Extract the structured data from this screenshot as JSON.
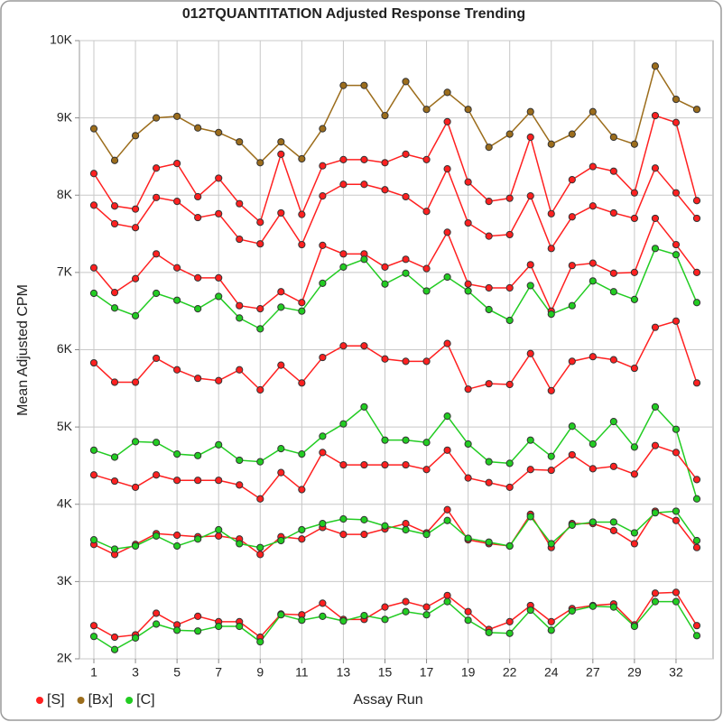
{
  "chart_data": {
    "type": "line",
    "title": "012TQUANTITATION Adjusted Response Trending",
    "x_label": "Assay Run",
    "y_label": "Mean Adjusted CPM",
    "categories": [
      "1",
      null,
      "3",
      null,
      "5",
      null,
      "7",
      null,
      "9",
      null,
      "11",
      null,
      "13",
      null,
      "15",
      null,
      "17",
      null,
      "19",
      null,
      "22",
      null,
      "24",
      null,
      "27",
      null,
      "29",
      null,
      "32",
      null
    ],
    "ylim": [
      2000,
      10000
    ],
    "yticks": [
      {
        "value": 2000,
        "label": "2K"
      },
      {
        "value": 3000,
        "label": "3K"
      },
      {
        "value": 4000,
        "label": "4K"
      },
      {
        "value": 5000,
        "label": "5K"
      },
      {
        "value": 6000,
        "label": "6K"
      },
      {
        "value": 7000,
        "label": "7K"
      },
      {
        "value": 8000,
        "label": "8K"
      },
      {
        "value": 9000,
        "label": "9K"
      },
      {
        "value": 10000,
        "label": "10K"
      }
    ],
    "grid": true,
    "legend": "bottom-left",
    "series": [
      {
        "name": "[S]",
        "color": "#ff2020",
        "values": [
          8280,
          7860,
          7820,
          8350,
          8410,
          7980,
          8220,
          7890,
          7650,
          8530,
          7750,
          8380,
          8460,
          8460,
          8420,
          8530,
          8460,
          8950,
          8170,
          7920,
          7960,
          8750,
          7760,
          8200,
          8370,
          8310,
          8030,
          9030,
          8940,
          7930
        ]
      },
      {
        "name": "[Bx]",
        "color": "#9c6d1c",
        "values": [
          8860,
          8450,
          8770,
          9000,
          9020,
          8870,
          8810,
          8690,
          8420,
          8690,
          8470,
          8860,
          9420,
          9420,
          9030,
          9470,
          9110,
          9330,
          9110,
          8620,
          8790,
          9080,
          8660,
          8790,
          9080,
          8750,
          8660,
          9670,
          9240,
          9110
        ]
      },
      {
        "name": "[S]",
        "color": "#ff2020",
        "values": [
          7870,
          7630,
          7580,
          7970,
          7920,
          7710,
          7760,
          7430,
          7370,
          7770,
          7360,
          7990,
          8140,
          8140,
          8070,
          7980,
          7790,
          8340,
          7640,
          7470,
          7490,
          7990,
          7310,
          7720,
          7860,
          7770,
          7700,
          8350,
          8030,
          7700
        ]
      },
      {
        "name": "[S]",
        "color": "#ff2020",
        "values": [
          7060,
          6740,
          6920,
          7240,
          7060,
          6930,
          6930,
          6570,
          6530,
          6750,
          6610,
          7350,
          7240,
          7240,
          7070,
          7170,
          7050,
          7520,
          6850,
          6800,
          6800,
          7100,
          6500,
          7090,
          7120,
          6990,
          7000,
          7700,
          7360,
          7000
        ]
      },
      {
        "name": "[C]",
        "color": "#22cc22",
        "values": [
          6730,
          6540,
          6440,
          6730,
          6640,
          6530,
          6690,
          6410,
          6270,
          6550,
          6500,
          6860,
          7070,
          7170,
          6850,
          6990,
          6760,
          6940,
          6760,
          6520,
          6380,
          6830,
          6460,
          6570,
          6890,
          6750,
          6650,
          7310,
          7230,
          6610
        ]
      },
      {
        "name": "[S]",
        "color": "#ff2020",
        "values": [
          5830,
          5580,
          5580,
          5890,
          5740,
          5630,
          5600,
          5740,
          5480,
          5800,
          5570,
          5900,
          6050,
          6050,
          5880,
          5850,
          5850,
          6080,
          5490,
          5560,
          5550,
          5950,
          5470,
          5850,
          5910,
          5870,
          5760,
          6290,
          6370,
          5570
        ]
      },
      {
        "name": "[C]",
        "color": "#22cc22",
        "values": [
          4700,
          4610,
          4810,
          4800,
          4650,
          4630,
          4770,
          4570,
          4550,
          4720,
          4650,
          4880,
          5040,
          5260,
          4830,
          4830,
          4800,
          5140,
          4780,
          4550,
          4530,
          4830,
          4620,
          5010,
          4780,
          5070,
          4740,
          5260,
          4970,
          4070
        ]
      },
      {
        "name": "[S]",
        "color": "#ff2020",
        "values": [
          4380,
          4300,
          4220,
          4380,
          4310,
          4310,
          4310,
          4250,
          4070,
          4410,
          4190,
          4670,
          4510,
          4510,
          4510,
          4510,
          4450,
          4700,
          4340,
          4280,
          4220,
          4450,
          4440,
          4640,
          4460,
          4490,
          4390,
          4760,
          4670,
          4320
        ]
      },
      {
        "name": "[S]",
        "color": "#ff2020",
        "values": [
          3480,
          3350,
          3480,
          3620,
          3600,
          3580,
          3590,
          3550,
          3350,
          3580,
          3550,
          3700,
          3610,
          3610,
          3680,
          3750,
          3630,
          3930,
          3540,
          3490,
          3460,
          3870,
          3440,
          3750,
          3750,
          3660,
          3490,
          3910,
          3790,
          3440
        ]
      },
      {
        "name": "[C]",
        "color": "#22cc22",
        "values": [
          3540,
          3420,
          3460,
          3590,
          3460,
          3550,
          3670,
          3490,
          3440,
          3530,
          3670,
          3750,
          3810,
          3800,
          3720,
          3670,
          3610,
          3790,
          3560,
          3510,
          3460,
          3840,
          3490,
          3730,
          3770,
          3770,
          3630,
          3890,
          3910,
          3530
        ]
      },
      {
        "name": "[S]",
        "color": "#ff2020",
        "values": [
          2430,
          2280,
          2310,
          2590,
          2440,
          2550,
          2480,
          2480,
          2280,
          2580,
          2570,
          2720,
          2510,
          2510,
          2670,
          2740,
          2670,
          2820,
          2610,
          2380,
          2480,
          2690,
          2480,
          2650,
          2690,
          2710,
          2440,
          2850,
          2860,
          2430
        ]
      },
      {
        "name": "[C]",
        "color": "#22cc22",
        "values": [
          2290,
          2120,
          2270,
          2450,
          2370,
          2360,
          2420,
          2420,
          2220,
          2570,
          2500,
          2550,
          2490,
          2560,
          2510,
          2610,
          2570,
          2740,
          2500,
          2340,
          2330,
          2630,
          2370,
          2620,
          2680,
          2670,
          2420,
          2740,
          2740,
          2300
        ]
      }
    ]
  }
}
